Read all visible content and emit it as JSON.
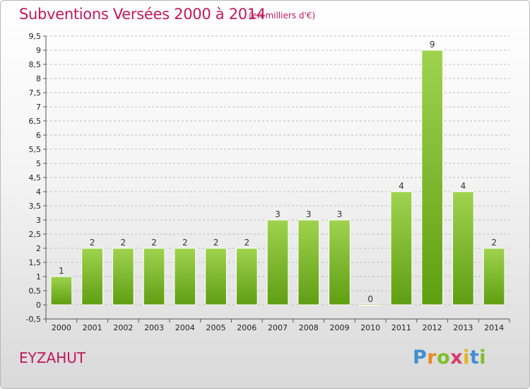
{
  "header": {
    "title": "Subventions Versées 2000 à 2014",
    "subtitle": "(en milliers d'€)"
  },
  "footer": {
    "commune": "EYZAHUT",
    "logo": "Proxiti"
  },
  "colors": {
    "title": "#c0185a",
    "bar_top": "#9fd34f",
    "bar_bottom": "#5f9e12",
    "grid": "#bbbbbb"
  },
  "chart_data": {
    "type": "bar",
    "categories": [
      "2000",
      "2001",
      "2002",
      "2003",
      "2004",
      "2005",
      "2006",
      "2007",
      "2008",
      "2009",
      "2010",
      "2011",
      "2012",
      "2013",
      "2014"
    ],
    "values": [
      1,
      2,
      2,
      2,
      2,
      2,
      2,
      3,
      3,
      3,
      0,
      4,
      9,
      4,
      2
    ],
    "value_labels": [
      "1",
      "2",
      "2",
      "2",
      "2",
      "2",
      "2",
      "3",
      "3",
      "3",
      "0",
      "4",
      "9",
      "4",
      "2"
    ],
    "ylim": [
      -0.5,
      9.5
    ],
    "yticks": [
      -0.5,
      0,
      0.5,
      1,
      1.5,
      2,
      2.5,
      3,
      3.5,
      4,
      4.5,
      5,
      5.5,
      6,
      6.5,
      7,
      7.5,
      8,
      8.5,
      9,
      9.5
    ],
    "ytick_labels": [
      "-0,5",
      "0",
      "0,5",
      "1",
      "1,5",
      "2",
      "2,5",
      "3",
      "3,5",
      "4",
      "4,5",
      "5",
      "5,5",
      "6",
      "6,5",
      "7",
      "7,5",
      "8",
      "8,5",
      "9",
      "9,5"
    ],
    "grid": "horizontal dashed",
    "title": "Subventions Versées 2000 à 2014",
    "xlabel": "",
    "ylabel": ""
  }
}
